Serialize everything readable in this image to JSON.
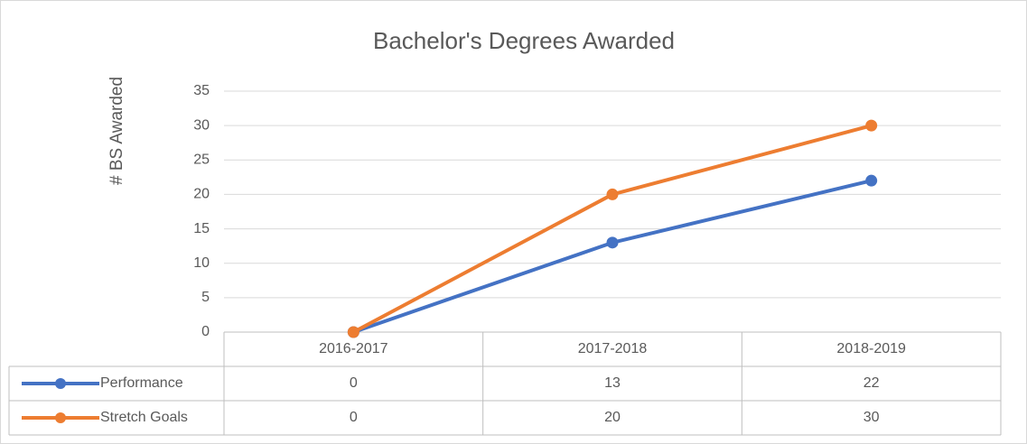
{
  "chart_data": {
    "type": "line",
    "title": "Bachelor's Degrees Awarded",
    "y_label": "# BS Awarded",
    "categories": [
      "2016-2017",
      "2017-2018",
      "2018-2019"
    ],
    "series": [
      {
        "name": "Performance",
        "color": "#4472c4",
        "values": [
          0,
          13,
          22
        ]
      },
      {
        "name": "Stretch Goals",
        "color": "#ed7d31",
        "values": [
          0,
          20,
          30
        ]
      }
    ],
    "ylim": [
      0,
      35
    ],
    "yticks": [
      0,
      5,
      10,
      15,
      20,
      25,
      30,
      35
    ],
    "grid": true,
    "data_table": true
  }
}
